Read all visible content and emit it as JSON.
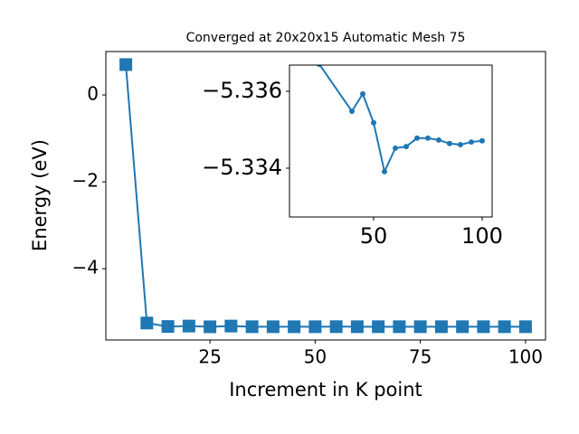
{
  "chart_data": [
    {
      "type": "line",
      "title": "Converged at 20x20x15 Automatic Mesh 75",
      "xlabel": "Increment in K point",
      "ylabel": "Energy (eV)",
      "x": [
        5,
        10,
        15,
        20,
        25,
        30,
        35,
        40,
        45,
        50,
        55,
        60,
        65,
        70,
        75,
        80,
        85,
        90,
        95,
        100
      ],
      "values": [
        0.7,
        -5.25,
        -5.33,
        -5.32,
        -5.3367,
        -5.32,
        -5.335,
        -5.33548,
        -5.33593,
        -5.33518,
        -5.33391,
        -5.33452,
        -5.33456,
        -5.33478,
        -5.33478,
        -5.33473,
        -5.33464,
        -5.33461,
        -5.33468,
        -5.33471
      ],
      "color": "#1f77b4",
      "marker": "square",
      "xlim": [
        0.25,
        104.75
      ],
      "ylim": [
        -5.64,
        1.0
      ],
      "xticks": [
        25,
        50,
        75,
        100
      ],
      "yticks": [
        0,
        {
          "value": -2,
          "label": "−2"
        },
        {
          "value": -4,
          "label": "−4"
        }
      ]
    },
    {
      "type": "line",
      "x": [
        25,
        40,
        45,
        50,
        55,
        60,
        65,
        70,
        75,
        80,
        85,
        90,
        95,
        100
      ],
      "values": [
        -5.3367,
        -5.33548,
        -5.33593,
        -5.33518,
        -5.33391,
        -5.33452,
        -5.33456,
        -5.33478,
        -5.33478,
        -5.33473,
        -5.33464,
        -5.33461,
        -5.33468,
        -5.33471
      ],
      "color": "#1f77b4",
      "marker": "circle",
      "xlim": [
        11.25,
        104.6
      ],
      "ylim": [
        -5.33273,
        -5.33668
      ],
      "xticks": [
        50,
        100
      ],
      "yticks": [
        {
          "value": -5.336,
          "label": "−5.336"
        },
        {
          "value": -5.334,
          "label": "−5.334"
        }
      ]
    }
  ]
}
